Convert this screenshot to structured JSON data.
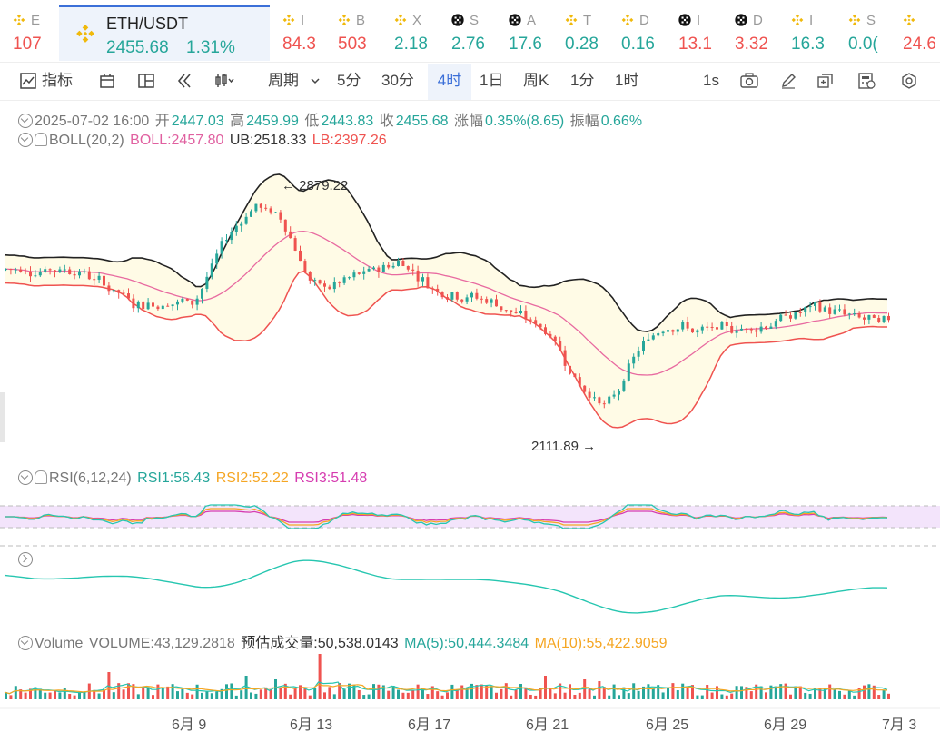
{
  "ticker": [
    {
      "sym": "E",
      "price": "107",
      "dir": "dn",
      "icon": "binance-icon"
    },
    {
      "sym": "ETH/USDT",
      "price": "2455.68",
      "change": "1.31%",
      "dir": "up",
      "icon": "binance-icon",
      "active": true
    },
    {
      "sym": "I",
      "price": "84.3",
      "dir": "dn",
      "icon": "binance-icon"
    },
    {
      "sym": "B",
      "price": "503",
      "dir": "dn",
      "icon": "binance-icon"
    },
    {
      "sym": "X",
      "price": "2.18",
      "dir": "up",
      "icon": "binance-icon"
    },
    {
      "sym": "S",
      "price": "2.76",
      "dir": "up",
      "icon": "okx-icon"
    },
    {
      "sym": "A",
      "price": "17.6",
      "dir": "up",
      "icon": "okx-icon"
    },
    {
      "sym": "T",
      "price": "0.28",
      "dir": "up",
      "icon": "binance-icon"
    },
    {
      "sym": "D",
      "price": "0.16",
      "dir": "up",
      "icon": "binance-icon"
    },
    {
      "sym": "I",
      "price": "13.1",
      "dir": "dn",
      "icon": "okx-icon"
    },
    {
      "sym": "D",
      "price": "3.32",
      "dir": "dn",
      "icon": "okx-icon"
    },
    {
      "sym": "I",
      "price": "16.3",
      "dir": "up",
      "icon": "binance-icon"
    },
    {
      "sym": "S",
      "price": "0.0(",
      "dir": "up",
      "icon": "binance-icon"
    },
    {
      "sym": "",
      "price": "24.6",
      "dir": "dn",
      "icon": "binance-icon"
    }
  ],
  "toolbar": {
    "indicator": "指标",
    "period": "周期",
    "intervals": [
      "5分",
      "30分",
      "4时",
      "1日",
      "周K",
      "1分",
      "1时"
    ],
    "selected_interval": "4时",
    "refresh": "1s"
  },
  "ohlc_legend": {
    "date": "2025-07-02 16:00",
    "open_label": "开",
    "open": "2447.03",
    "high_label": "高",
    "high": "2459.99",
    "low_label": "低",
    "low": "2443.83",
    "close_label": "收",
    "close": "2455.68",
    "change_label": "涨幅",
    "change": "0.35%(8.65)",
    "amp_label": "振幅",
    "amp": "0.66%"
  },
  "boll_legend": {
    "name": "BOLL(20,2)",
    "mid": "BOLL:2457.80",
    "ub": "UB:2518.33",
    "lb": "LB:2397.26"
  },
  "rsi_legend": {
    "name": "RSI(6,12,24)",
    "rsi1": "RSI1:56.43",
    "rsi2": "RSI2:52.22",
    "rsi3": "RSI3:51.48"
  },
  "vol_legend": {
    "name": "Volume",
    "vol": "VOLUME:43,129.2818",
    "est": "预估成交量:50,538.0143",
    "ma5": "MA(5):50,444.3484",
    "ma10": "MA(10):55,422.9059"
  },
  "annotations": {
    "high": "2879.22",
    "low": "2111.89"
  },
  "colors": {
    "up": "#26a69a",
    "down": "#ef5350",
    "boll_mid": "#e86aa0",
    "band_fill": "#fffbe6",
    "ub": "#222222",
    "lb": "#ef5350",
    "rsi1": "#26c6b0",
    "rsi2": "#f5a623",
    "rsi3": "#d63cb0",
    "accent": "#3b6fd8"
  },
  "chart_data": {
    "type": "candlestick",
    "x_tick_labels": [
      "6月 9",
      "6月 13",
      "6月 17",
      "6月 21",
      "6月 25",
      "6月 29",
      "7月 3"
    ],
    "price_high_annotation": 2879.22,
    "price_low_annotation": 2111.89,
    "close_path_keypoints": [
      {
        "date": "6月 5",
        "close": 2620
      },
      {
        "date": "6月 7",
        "close": 2510
      },
      {
        "date": "6月 9",
        "close": 2520
      },
      {
        "date": "6月 10",
        "close": 2720
      },
      {
        "date": "6月 11",
        "close": 2830
      },
      {
        "date": "6月 12",
        "close": 2770
      },
      {
        "date": "6月 13",
        "close": 2550
      },
      {
        "date": "6月 14",
        "close": 2580
      },
      {
        "date": "6月 16",
        "close": 2650
      },
      {
        "date": "6月 17",
        "close": 2560
      },
      {
        "date": "6月 19",
        "close": 2520
      },
      {
        "date": "6月 21",
        "close": 2420
      },
      {
        "date": "6月 22",
        "close": 2250
      },
      {
        "date": "6月 23",
        "close": 2180
      },
      {
        "date": "6月 24",
        "close": 2370
      },
      {
        "date": "6月 25",
        "close": 2460
      },
      {
        "date": "6月 26",
        "close": 2420
      },
      {
        "date": "6月 28",
        "close": 2440
      },
      {
        "date": "6月 30",
        "close": 2500
      },
      {
        "date": "7月 2",
        "close": 2455.68
      }
    ]
  }
}
